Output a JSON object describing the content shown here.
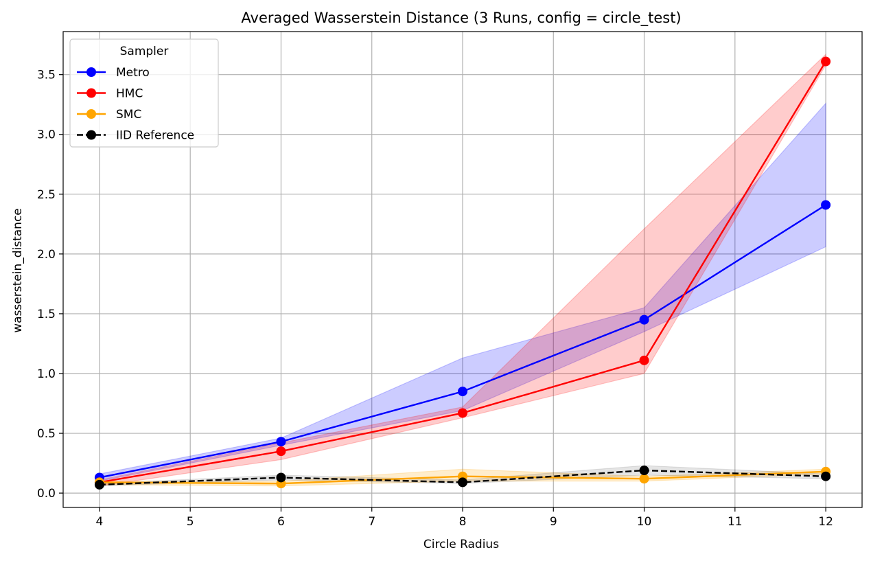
{
  "chart_data": {
    "type": "line",
    "title": "Averaged Wasserstein Distance (3 Runs, config = circle_test)",
    "xlabel": "Circle Radius",
    "ylabel": "wasserstein_distance",
    "x": [
      4,
      6,
      8,
      10,
      12
    ],
    "xlim": [
      3.6,
      12.4
    ],
    "ylim": [
      -0.12,
      3.86
    ],
    "xticks": [
      4,
      5,
      6,
      7,
      8,
      9,
      10,
      11,
      12
    ],
    "yticks": [
      0.0,
      0.5,
      1.0,
      1.5,
      2.0,
      2.5,
      3.0,
      3.5
    ],
    "ytick_labels": [
      "0.0",
      "0.5",
      "1.0",
      "1.5",
      "2.0",
      "2.5",
      "3.0",
      "3.5"
    ],
    "grid": true,
    "legend": {
      "title": "Sampler",
      "placement": "upper-left"
    },
    "series": [
      {
        "name": "Metro",
        "color": "#0000ff",
        "dashed": false,
        "values": [
          0.13,
          0.43,
          0.85,
          1.45,
          2.41
        ],
        "lower": [
          0.1,
          0.4,
          0.69,
          1.35,
          2.06
        ],
        "upper": [
          0.16,
          0.46,
          1.13,
          1.55,
          3.26
        ]
      },
      {
        "name": "HMC",
        "color": "#ff0000",
        "dashed": false,
        "values": [
          0.09,
          0.35,
          0.67,
          1.11,
          3.61
        ],
        "lower": [
          0.06,
          0.28,
          0.63,
          1.0,
          3.58
        ],
        "upper": [
          0.11,
          0.42,
          0.72,
          2.21,
          3.67
        ]
      },
      {
        "name": "SMC",
        "color": "#ffa500",
        "dashed": false,
        "values": [
          0.09,
          0.08,
          0.14,
          0.12,
          0.18
        ],
        "lower": [
          0.07,
          0.06,
          0.1,
          0.1,
          0.16
        ],
        "upper": [
          0.1,
          0.1,
          0.2,
          0.14,
          0.2
        ]
      },
      {
        "name": "IID Reference",
        "color": "#000000",
        "dashed": true,
        "values": [
          0.07,
          0.13,
          0.09,
          0.19,
          0.14
        ],
        "lower": [
          0.06,
          0.11,
          0.08,
          0.15,
          0.12
        ],
        "upper": [
          0.08,
          0.15,
          0.11,
          0.23,
          0.16
        ]
      }
    ]
  }
}
